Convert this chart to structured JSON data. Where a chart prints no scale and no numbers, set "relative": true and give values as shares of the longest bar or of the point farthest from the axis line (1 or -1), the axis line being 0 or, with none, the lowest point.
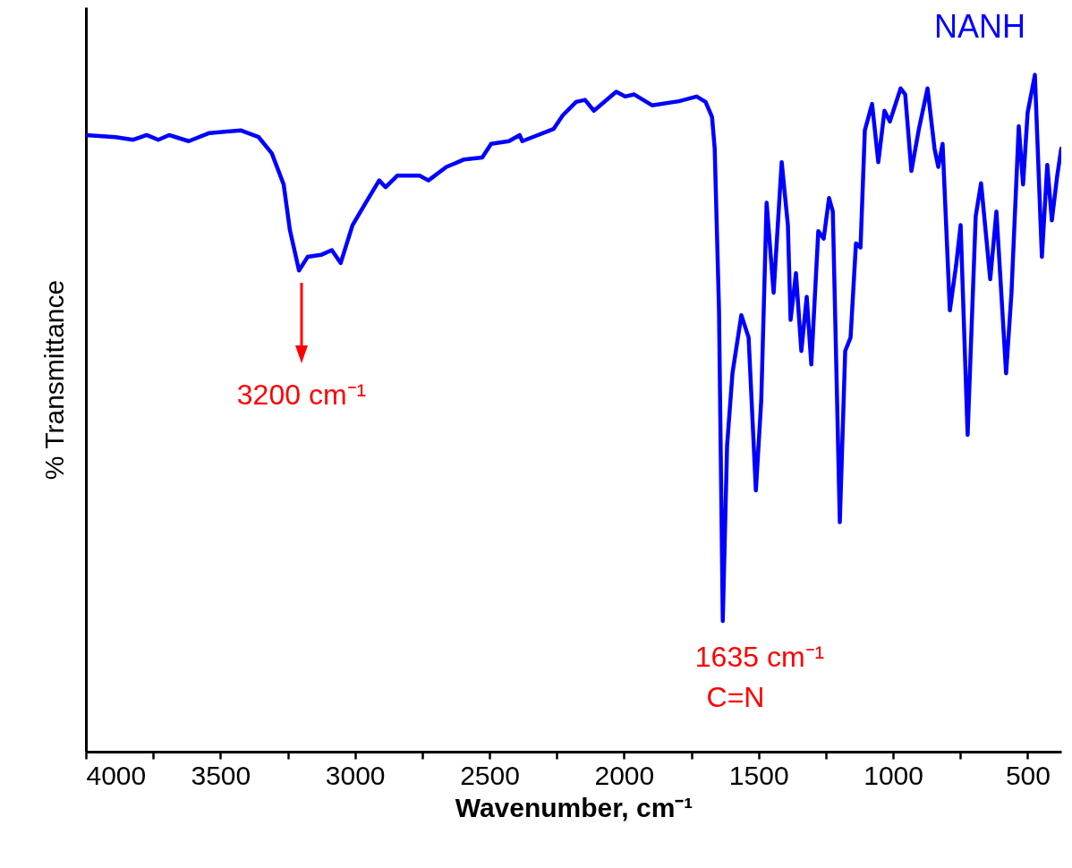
{
  "chart_data": {
    "type": "line",
    "relative": true,
    "xlabel": "Wavenumber, cm⁻¹",
    "ylabel": "% Transmittance",
    "xlim": [
      4000,
      375
    ],
    "xticks": [
      4000,
      {
        "value": 3750,
        "label": null
      },
      3500,
      {
        "value": 3250,
        "label": null
      },
      3000,
      {
        "value": 2750,
        "label": null
      },
      2500,
      {
        "value": 2250,
        "label": null
      },
      2000,
      {
        "value": 1750,
        "label": null
      },
      1500,
      {
        "value": 1250,
        "label": null
      },
      1000,
      {
        "value": 750,
        "label": null
      },
      500
    ],
    "annotations": [
      "3200 cm⁻¹",
      "1635 cm⁻¹",
      "C=N"
    ],
    "series": [
      {
        "name": "NANH",
        "color": "#0000ff",
        "x": [
          4000,
          3890,
          3824,
          3774,
          3731,
          3691,
          3658,
          3618,
          3541,
          3425,
          3358,
          3309,
          3265,
          3242,
          3208,
          3176,
          3126,
          3086,
          3053,
          3009,
          2960,
          2910,
          2886,
          2843,
          2760,
          2727,
          2660,
          2594,
          2527,
          2494,
          2428,
          2388,
          2378,
          2262,
          2228,
          2178,
          2145,
          2112,
          2029,
          1996,
          1962,
          1896,
          1796,
          1730,
          1697,
          1673,
          1663,
          1647,
          1633,
          1617,
          1597,
          1564,
          1537,
          1510,
          1490,
          1470,
          1444,
          1414,
          1391,
          1381,
          1361,
          1341,
          1321,
          1304,
          1278,
          1258,
          1238,
          1224,
          1198,
          1178,
          1158,
          1138,
          1121,
          1105,
          1078,
          1055,
          1032,
          1012,
          972,
          955,
          932,
          905,
          872,
          846,
          832,
          816,
          789,
          766,
          749,
          723,
          693,
          673,
          639,
          616,
          580,
          560,
          533,
          517,
          500,
          473,
          447,
          427,
          410,
          390,
          375
        ],
        "values": [
          0.911,
          0.908,
          0.904,
          0.911,
          0.904,
          0.911,
          0.907,
          0.902,
          0.914,
          0.918,
          0.908,
          0.884,
          0.838,
          0.771,
          0.711,
          0.731,
          0.734,
          0.741,
          0.722,
          0.778,
          0.811,
          0.844,
          0.834,
          0.851,
          0.851,
          0.844,
          0.864,
          0.875,
          0.878,
          0.898,
          0.902,
          0.911,
          0.902,
          0.92,
          0.94,
          0.96,
          0.963,
          0.947,
          0.975,
          0.968,
          0.971,
          0.955,
          0.961,
          0.968,
          0.96,
          0.938,
          0.891,
          0.652,
          0.193,
          0.452,
          0.559,
          0.645,
          0.612,
          0.386,
          0.519,
          0.811,
          0.678,
          0.871,
          0.778,
          0.638,
          0.707,
          0.592,
          0.672,
          0.572,
          0.769,
          0.758,
          0.818,
          0.798,
          0.339,
          0.592,
          0.612,
          0.751,
          0.745,
          0.918,
          0.957,
          0.871,
          0.947,
          0.931,
          0.98,
          0.971,
          0.858,
          0.918,
          0.98,
          0.891,
          0.864,
          0.898,
          0.652,
          0.718,
          0.778,
          0.468,
          0.791,
          0.84,
          0.698,
          0.798,
          0.559,
          0.678,
          0.924,
          0.838,
          0.944,
          1.0,
          0.731,
          0.867,
          0.785,
          0.851,
          0.891
        ]
      }
    ]
  }
}
